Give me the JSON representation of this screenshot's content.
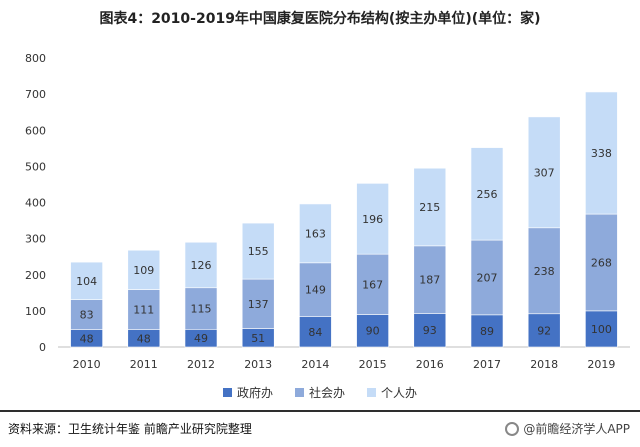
{
  "chart_data": {
    "type": "bar",
    "stacked": true,
    "title": "图表4：2010-2019年中国康复医院分布结构(按主办单位)(单位：家)",
    "categories": [
      "2010",
      "2011",
      "2012",
      "2013",
      "2014",
      "2015",
      "2016",
      "2017",
      "2018",
      "2019"
    ],
    "series": [
      {
        "name": "政府办",
        "color": "#4472c4",
        "values": [
          48,
          48,
          49,
          51,
          84,
          90,
          93,
          89,
          92,
          100
        ]
      },
      {
        "name": "社会办",
        "color": "#8eaadb",
        "values": [
          83,
          111,
          115,
          137,
          149,
          167,
          187,
          207,
          238,
          268
        ]
      },
      {
        "name": "个人办",
        "color": "#c5dcf7",
        "values": [
          104,
          109,
          126,
          155,
          163,
          196,
          215,
          256,
          307,
          338
        ]
      }
    ],
    "ylim": [
      0,
      800
    ],
    "yticks": [
      0,
      100,
      200,
      300,
      400,
      500,
      600,
      700,
      800
    ],
    "legend_position": "bottom"
  },
  "source": "资料来源：卫生统计年鉴 前瞻产业研究院整理",
  "watermark": "@前瞻经济学人APP"
}
